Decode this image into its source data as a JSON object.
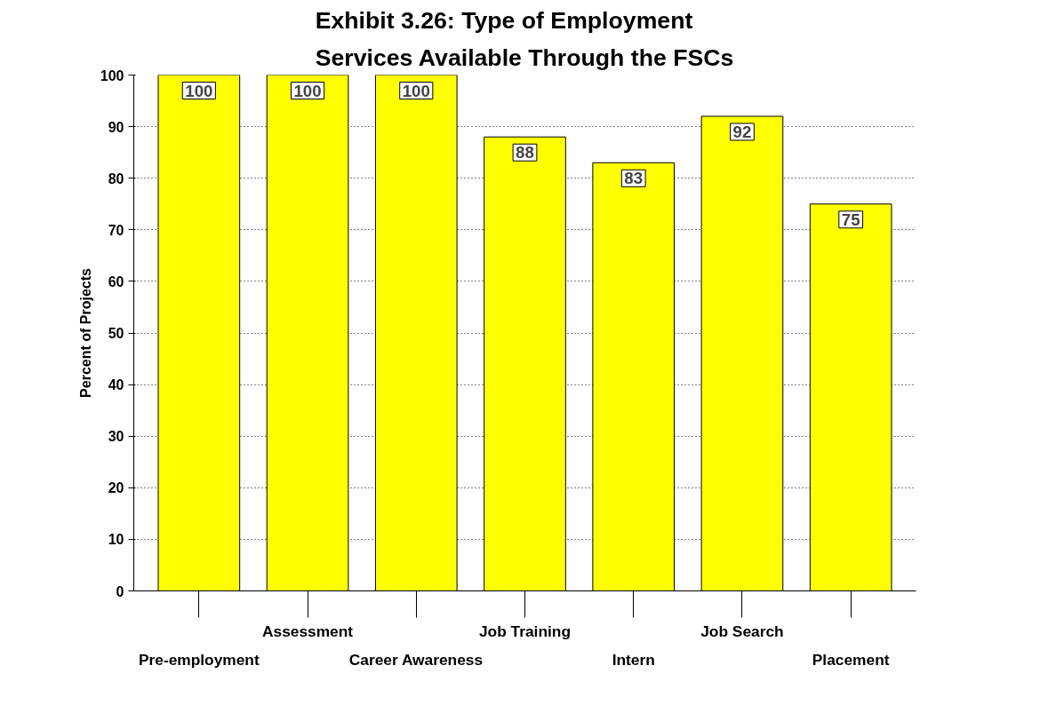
{
  "chart_data": {
    "type": "bar",
    "title": "Exhibit 3.26:  Type of Employment\nServices Available Through the FSCs",
    "ylabel": "Percent of Projects",
    "categories": [
      "Pre-employment",
      "Assessment",
      "Career Awareness",
      "Job Training",
      "Intern",
      "Job Search",
      "Placement"
    ],
    "values": [
      100,
      100,
      100,
      88,
      83,
      92,
      75
    ],
    "color": "#ffff00",
    "data_labels": true,
    "ylim": [
      0,
      100
    ],
    "yticks": [
      0,
      10,
      20,
      30,
      40,
      50,
      60,
      70,
      80,
      90,
      100
    ],
    "grid": "y"
  }
}
